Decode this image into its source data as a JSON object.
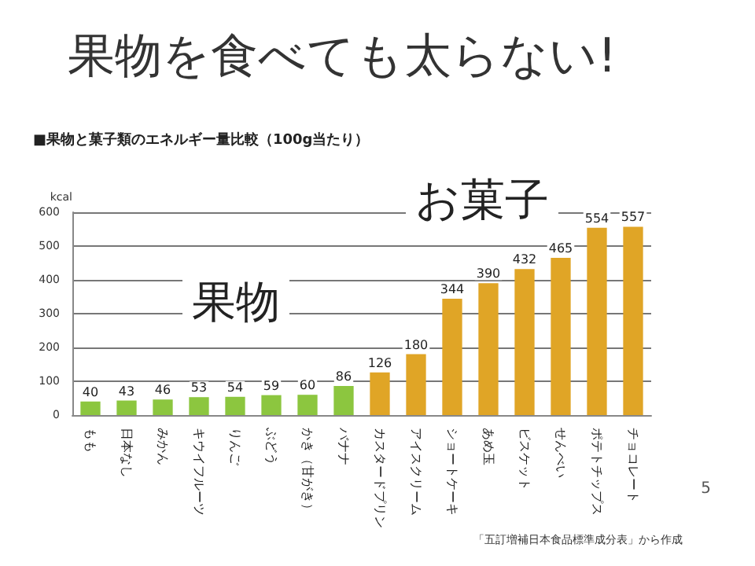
{
  "chart_data": {
    "type": "bar",
    "title": "果物を食べても太らない!",
    "subtitle": "■果物と菓子類のエネルギー量比較（100g当たり）",
    "ylabel": "kcal",
    "categories": [
      "もも",
      "日本なし",
      "みかん",
      "キウイフルーツ",
      "りんご",
      "ぶどう",
      "かき（甘がき）",
      "バナナ",
      "カスタードプリン",
      "アイスクリーム",
      "ショートケーキ",
      "あめ玉",
      "ビスケット",
      "せんべい",
      "ポテトチップス",
      "チョコレート"
    ],
    "values": [
      40,
      43,
      46,
      53,
      54,
      59,
      60,
      86,
      126,
      180,
      344,
      390,
      432,
      465,
      554,
      557
    ],
    "colors": [
      "#8cc63f",
      "#8cc63f",
      "#8cc63f",
      "#8cc63f",
      "#8cc63f",
      "#8cc63f",
      "#8cc63f",
      "#8cc63f",
      "#e0a526",
      "#e0a526",
      "#e0a526",
      "#e0a526",
      "#e0a526",
      "#e0a526",
      "#e0a526",
      "#e0a526"
    ],
    "ylim": [
      0,
      600
    ],
    "yticks": [
      0,
      100,
      200,
      300,
      400,
      500,
      600
    ],
    "grid": "y",
    "data_labels": true,
    "annotations": [
      "果物",
      "お菓子",
      "「五訂増補日本食品標準成分表」から作成",
      "5"
    ]
  }
}
